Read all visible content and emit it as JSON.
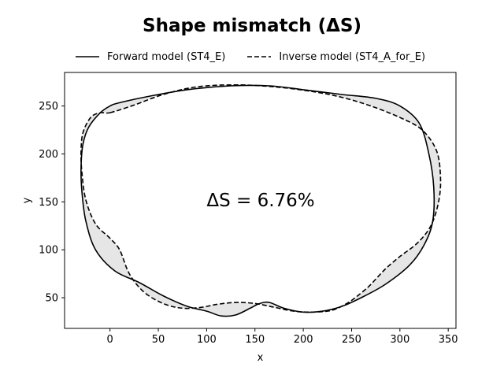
{
  "chart_data": {
    "type": "line",
    "title": "Shape mismatch (ΔS)",
    "xlabel": "x",
    "ylabel": "y",
    "xlim": [
      -47,
      358
    ],
    "ylim": [
      18,
      285
    ],
    "xticks": [
      0,
      50,
      100,
      150,
      200,
      250,
      300,
      350
    ],
    "yticks": [
      50,
      100,
      150,
      200,
      250
    ],
    "grid": false,
    "legend_position": "top-center",
    "annotation": "ΔS = 6.76%",
    "fill_color": "#e6e6e6",
    "series": [
      {
        "name": "Forward model (ST4_E)",
        "style": "solid",
        "color": "#000000",
        "x": [
          8,
          40,
          80,
          125,
          165,
          200,
          240,
          275,
          300,
          320,
          330,
          335,
          334,
          325,
          310,
          285,
          260,
          240,
          220,
          200,
          180,
          165,
          155,
          145,
          130,
          115,
          100,
          80,
          55,
          30,
          5,
          -15,
          -25,
          -29,
          -30,
          -28,
          -22,
          -10,
          0,
          8
        ],
        "y": [
          253,
          260,
          267,
          271,
          271,
          267,
          262,
          258,
          250,
          232,
          200,
          165,
          130,
          105,
          84,
          64,
          50,
          41,
          36,
          35,
          39,
          45,
          44,
          39,
          32,
          31,
          36,
          41,
          52,
          66,
          78,
          100,
          130,
          160,
          185,
          210,
          228,
          243,
          250,
          253
        ]
      },
      {
        "name": "Inverse model (ST4_A_for_E)",
        "style": "dashed",
        "color": "#000000",
        "x": [
          0,
          25,
          55,
          90,
          130,
          170,
          210,
          240,
          270,
          300,
          323,
          338,
          342,
          340,
          332,
          318,
          300,
          285,
          268,
          255,
          245,
          230,
          210,
          190,
          170,
          150,
          130,
          110,
          95,
          75,
          55,
          35,
          20,
          10,
          0,
          -15,
          -25,
          -29,
          -30,
          -28,
          -20,
          -10,
          0
        ],
        "y": [
          243,
          251,
          262,
          270,
          272,
          270,
          265,
          259,
          250,
          238,
          225,
          203,
          175,
          150,
          125,
          107,
          93,
          80,
          62,
          51,
          44,
          37,
          35,
          36,
          40,
          44,
          45,
          43,
          40,
          39,
          44,
          56,
          75,
          100,
          112,
          127,
          152,
          180,
          202,
          222,
          238,
          243,
          243
        ]
      }
    ]
  }
}
